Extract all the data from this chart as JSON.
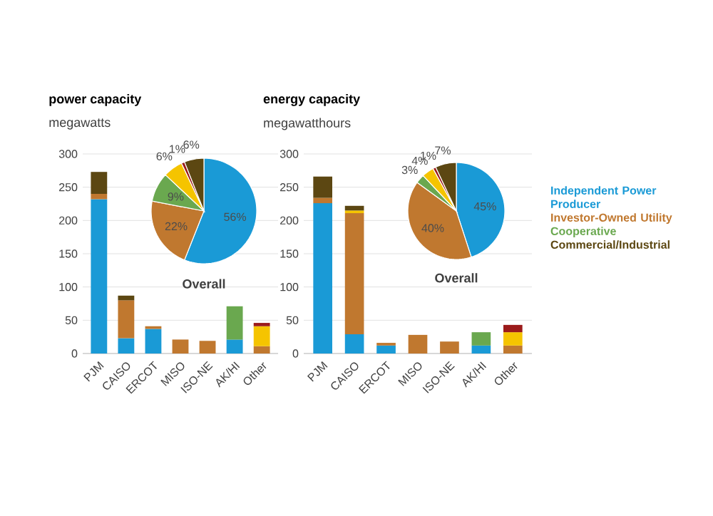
{
  "chart_data": [
    {
      "type": "bar",
      "stacked": true,
      "title": "power capacity",
      "subtitle": "megawatts",
      "categories": [
        "PJM",
        "CAISO",
        "ERCOT",
        "MISO",
        "ISO-NE",
        "AK/HI",
        "Other"
      ],
      "series": [
        {
          "color": "#1a9ad6",
          "values": [
            232,
            23,
            37,
            null,
            null,
            21,
            null
          ]
        },
        {
          "color": "#c0782f",
          "values": [
            8,
            57,
            4,
            21,
            19,
            null,
            11
          ]
        },
        {
          "color": "#6aa84f",
          "values": [
            null,
            null,
            null,
            null,
            null,
            50,
            null
          ]
        },
        {
          "color": "#f5c400",
          "values": [
            null,
            null,
            null,
            null,
            null,
            null,
            30
          ]
        },
        {
          "color": "#9b1b1b",
          "values": [
            null,
            null,
            null,
            null,
            null,
            null,
            5
          ]
        },
        {
          "color": "#5c4712",
          "values": [
            33,
            7,
            null,
            null,
            null,
            null,
            null
          ]
        }
      ],
      "ylim": [
        0,
        300
      ],
      "yticks": [
        0,
        50,
        100,
        150,
        200,
        250,
        300
      ],
      "grid": "y"
    },
    {
      "type": "pie",
      "title": "Overall",
      "categories": [
        null,
        null,
        null,
        null,
        null,
        null
      ],
      "values": [
        56,
        22,
        9,
        6,
        1,
        6
      ],
      "value_labels": [
        "56%",
        "22%",
        "9%",
        "6%",
        "1%",
        "6%"
      ],
      "colors": [
        "#1a9ad6",
        "#c0782f",
        "#6aa84f",
        "#f5c400",
        "#9b1b1b",
        "#5c4712"
      ]
    },
    {
      "type": "bar",
      "stacked": true,
      "title": "energy capacity",
      "subtitle": "megawatthours",
      "categories": [
        "PJM",
        "CAISO",
        "ERCOT",
        "MISO",
        "ISO-NE",
        "AK/HI",
        "Other"
      ],
      "series": [
        {
          "name": "Independent Power Producer",
          "color": "#1a9ad6",
          "values": [
            226,
            29,
            12,
            null,
            null,
            12,
            null
          ]
        },
        {
          "name": "Investor-Owned Utility",
          "color": "#c0782f",
          "values": [
            8,
            182,
            4,
            28,
            18,
            null,
            12
          ]
        },
        {
          "name": "Cooperative",
          "color": "#6aa84f",
          "values": [
            null,
            null,
            null,
            null,
            null,
            20,
            null
          ]
        },
        {
          "color": "#f5c400",
          "values": [
            null,
            4,
            null,
            null,
            null,
            null,
            20
          ]
        },
        {
          "color": "#9b1b1b",
          "values": [
            null,
            null,
            null,
            null,
            null,
            null,
            11
          ]
        },
        {
          "name": "Commercial/Industrial",
          "color": "#5c4712",
          "values": [
            32,
            7,
            null,
            null,
            null,
            null,
            null
          ]
        }
      ],
      "ylim": [
        0,
        300
      ],
      "yticks": [
        0,
        50,
        100,
        150,
        200,
        250,
        300
      ],
      "grid": "y",
      "legend": "right"
    },
    {
      "type": "pie",
      "title": "Overall",
      "categories": [
        null,
        null,
        null,
        null,
        null,
        null
      ],
      "values": [
        45,
        40,
        3,
        4,
        1,
        7
      ],
      "value_labels": [
        "45%",
        "40%",
        "3%",
        "4%",
        "1%",
        "7%"
      ],
      "colors": [
        "#1a9ad6",
        "#c0782f",
        "#6aa84f",
        "#f5c400",
        "#9b1b1b",
        "#5c4712"
      ]
    }
  ]
}
